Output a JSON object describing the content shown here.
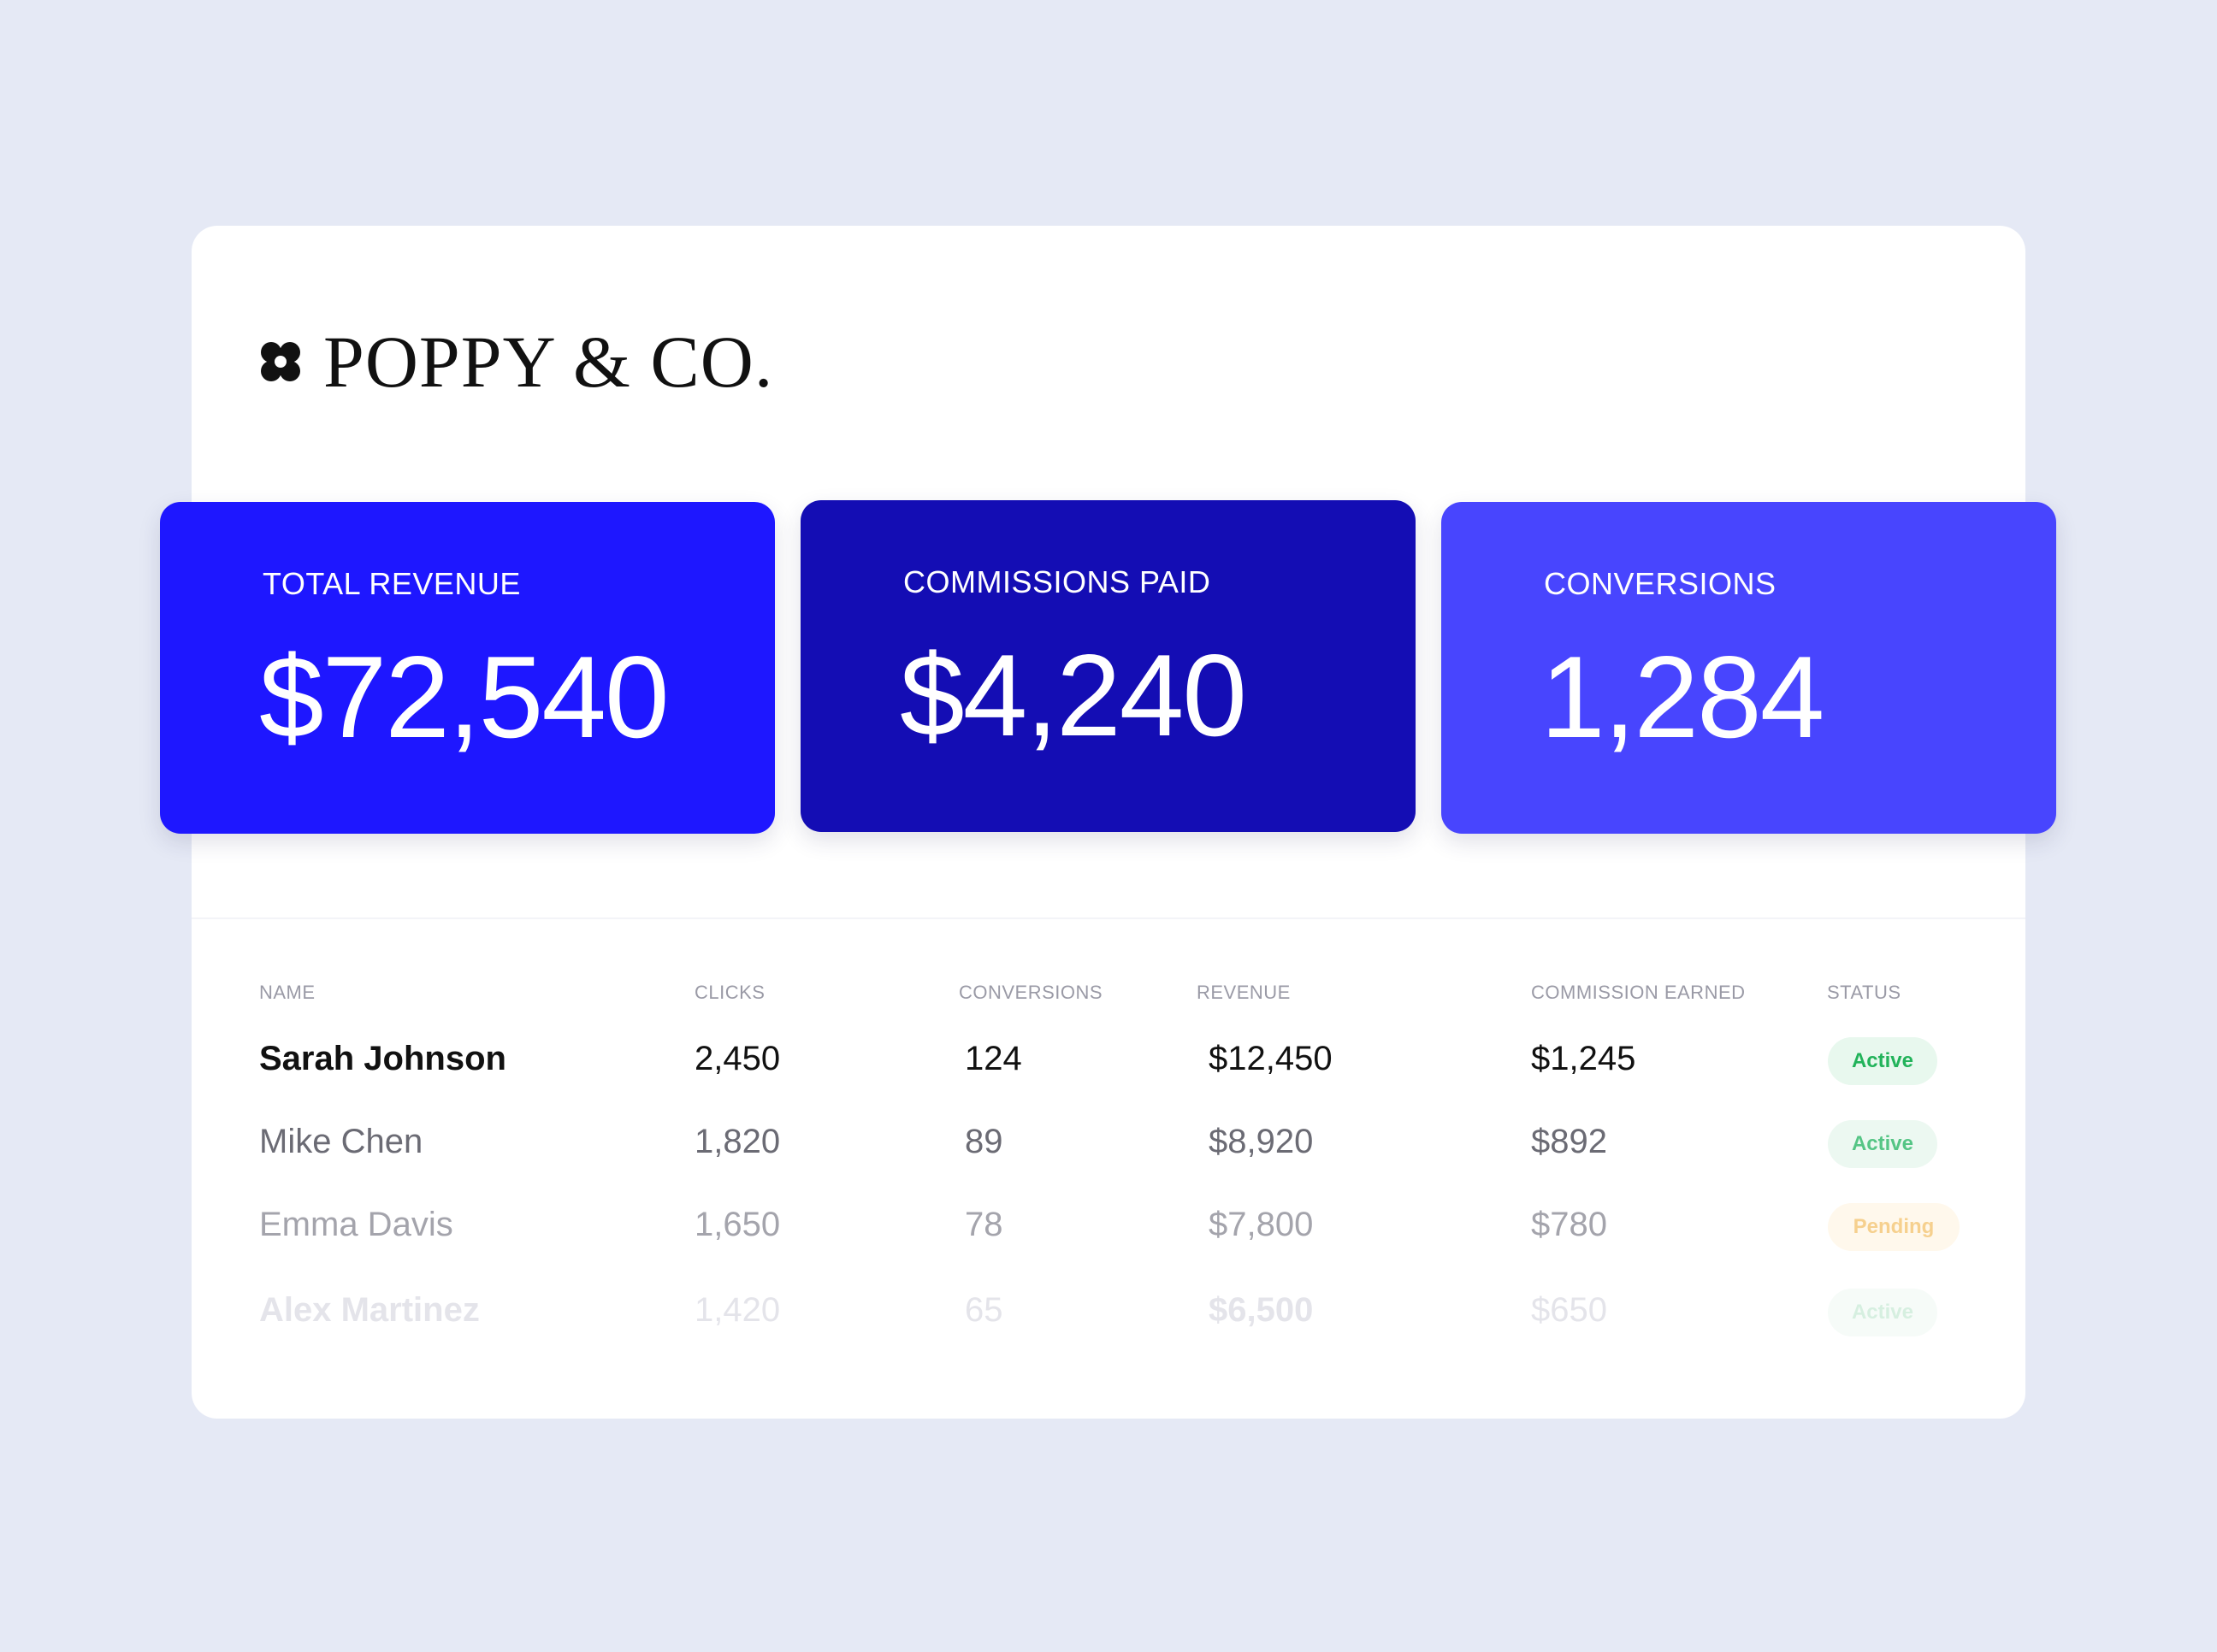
{
  "brand": {
    "name": "POPPY & CO.",
    "icon": "flower-logo-icon"
  },
  "stats": [
    {
      "label": "TOTAL REVENUE",
      "value": "$72,540",
      "color": "#1e17ff"
    },
    {
      "label": "COMMISSIONS PAID",
      "value": "$4,240",
      "color": "#140db4"
    },
    {
      "label": "CONVERSIONS",
      "value": "1,284",
      "color": "#4845fe"
    }
  ],
  "table": {
    "headers": [
      "NAME",
      "CLICKS",
      "CONVERSIONS",
      "REVENUE",
      "COMMISSION EARNED",
      "STATUS"
    ],
    "rows": [
      {
        "name": "Sarah Johnson",
        "clicks": "2,450",
        "conversions": "124",
        "revenue": "$12,450",
        "commission": "$1,245",
        "status": "Active"
      },
      {
        "name": "Mike Chen",
        "clicks": "1,820",
        "conversions": "89",
        "revenue": "$8,920",
        "commission": "$892",
        "status": "Active"
      },
      {
        "name": "Emma Davis",
        "clicks": "1,650",
        "conversions": "78",
        "revenue": "$7,800",
        "commission": "$780",
        "status": "Pending"
      },
      {
        "name": "Alex Martinez",
        "clicks": "1,420",
        "conversions": "65",
        "revenue": "$6,500",
        "commission": "$650",
        "status": "Active"
      }
    ]
  },
  "colors": {
    "background": "#e5e9f5",
    "panel": "#ffffff",
    "active_badge_bg": "#e8f8ee",
    "active_badge_text": "#22b35a",
    "pending_badge_bg": "#fff6e6",
    "pending_badge_text": "#f0b545"
  }
}
